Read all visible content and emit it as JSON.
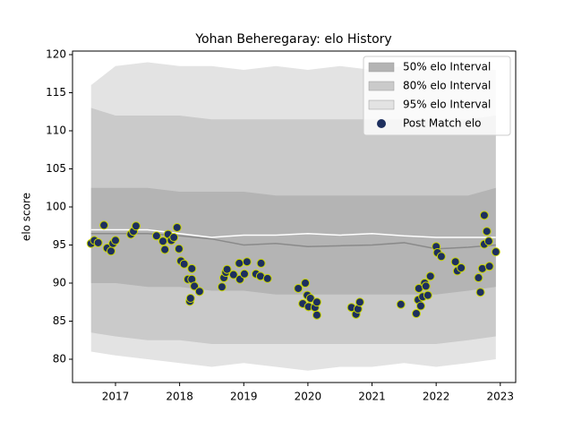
{
  "chart_data": {
    "type": "band-scatter",
    "title": "Yohan Beheregaray: elo History",
    "y_label": "elo score",
    "x": [
      2016.62,
      2017,
      2017.5,
      2018,
      2018.5,
      2019,
      2019.5,
      2020,
      2020.5,
      2021,
      2021.5,
      2022,
      2022.5,
      2022.93
    ],
    "series": [
      {
        "name": "50% elo Interval",
        "type": "band",
        "color": "#b4b4b4",
        "upper": [
          102.5,
          102.5,
          102.5,
          102,
          102,
          102,
          101.5,
          101.5,
          101.5,
          101.5,
          101.5,
          101.5,
          101.5,
          102.5
        ],
        "lower": [
          90,
          90,
          89.5,
          89.5,
          89,
          89,
          88.5,
          88.5,
          88.5,
          88.5,
          88.5,
          88.5,
          89,
          89.5
        ]
      },
      {
        "name": "80% elo Interval",
        "type": "band",
        "color": "#cacaca",
        "upper": [
          113,
          112,
          112,
          112,
          111.5,
          111.5,
          111.5,
          111.5,
          111.5,
          111.5,
          111.5,
          111.5,
          111.5,
          112
        ],
        "lower": [
          83.5,
          83,
          82.5,
          82.5,
          82,
          82,
          82,
          82,
          82,
          82,
          82,
          82,
          82.5,
          83
        ]
      },
      {
        "name": "95% elo Interval",
        "type": "band",
        "color": "#e3e3e3",
        "upper": [
          116,
          118.5,
          119,
          118.5,
          118.5,
          118,
          118.5,
          118,
          118.5,
          118,
          118.5,
          118,
          118,
          118
        ],
        "lower": [
          81,
          80.5,
          80,
          79.5,
          79,
          79.5,
          79,
          78.5,
          79,
          79,
          79.5,
          79,
          79.5,
          80
        ]
      },
      {
        "type": "line",
        "color": "#ffffff",
        "values": [
          97,
          97,
          97,
          96.5,
          96,
          96.3,
          96.3,
          96.5,
          96.3,
          96.5,
          96.2,
          96,
          96,
          96
        ]
      },
      {
        "type": "line",
        "color": "#8a8a8a",
        "values": [
          96.5,
          96.5,
          96.5,
          96.2,
          95.8,
          95,
          95.2,
          94.8,
          94.9,
          95,
          95.3,
          94.5,
          94.7,
          95
        ]
      },
      {
        "name": "Post Match elo",
        "type": "scatter",
        "color": "#1d2f5e",
        "edgecolor": "#c8d400",
        "x": [
          2016.62,
          2016.67,
          2016.73,
          2016.82,
          2016.87,
          2016.93,
          2016.96,
          2017.0,
          2017.24,
          2017.28,
          2017.32,
          2017.64,
          2017.74,
          2017.77,
          2017.82,
          2017.87,
          2017.91,
          2017.96,
          2017.99,
          2018.02,
          2018.07,
          2018.13,
          2018.16,
          2018.17,
          2018.19,
          2018.19,
          2018.23,
          2018.31,
          2018.66,
          2018.69,
          2018.72,
          2018.74,
          2018.84,
          2018.93,
          2018.94,
          2019.01,
          2019.05,
          2019.19,
          2019.26,
          2019.27,
          2019.37,
          2019.85,
          2019.92,
          2019.96,
          2019.99,
          2020.01,
          2020.04,
          2020.11,
          2020.14,
          2020.14,
          2020.68,
          2020.75,
          2020.78,
          2020.81,
          2021.45,
          2021.69,
          2021.72,
          2021.73,
          2021.76,
          2021.79,
          2021.82,
          2021.84,
          2021.87,
          2021.91,
          2022.0,
          2022.02,
          2022.08,
          2022.3,
          2022.33,
          2022.39,
          2022.66,
          2022.69,
          2022.72,
          2022.75,
          2022.75,
          2022.79,
          2022.82,
          2022.83,
          2022.93
        ],
        "values": [
          95.2,
          95.6,
          95.3,
          97.6,
          94.6,
          94.2,
          95.2,
          95.6,
          96.4,
          96.8,
          97.5,
          96.2,
          95.5,
          94.4,
          96.4,
          95.6,
          96,
          97.3,
          94.5,
          92.9,
          92.5,
          90.5,
          87.6,
          88,
          91.9,
          90.5,
          89.6,
          88.9,
          89.5,
          90.7,
          91.4,
          91.8,
          91.1,
          92.6,
          90.5,
          91.2,
          92.8,
          91.2,
          90.9,
          92.6,
          90.6,
          89.3,
          87.3,
          90,
          88.4,
          86.9,
          88,
          86.8,
          87.5,
          85.8,
          86.8,
          85.9,
          86.6,
          87.5,
          87.2,
          86,
          87.8,
          89.3,
          87,
          88.2,
          90,
          89.6,
          88.4,
          90.9,
          94.8,
          94,
          93.5,
          92.8,
          91.6,
          92,
          90.7,
          88.8,
          91.9,
          98.9,
          95.1,
          96.8,
          95.5,
          92.2,
          94.1
        ]
      }
    ],
    "xlim": [
      2016.33,
      2023.24
    ],
    "ylim": [
      76.94,
      120.47
    ],
    "xticks": [
      2017,
      2018,
      2019,
      2020,
      2021,
      2022,
      2023
    ],
    "yticks": [
      80,
      85,
      90,
      95,
      100,
      105,
      110,
      115,
      120
    ],
    "legend": "upper right"
  }
}
